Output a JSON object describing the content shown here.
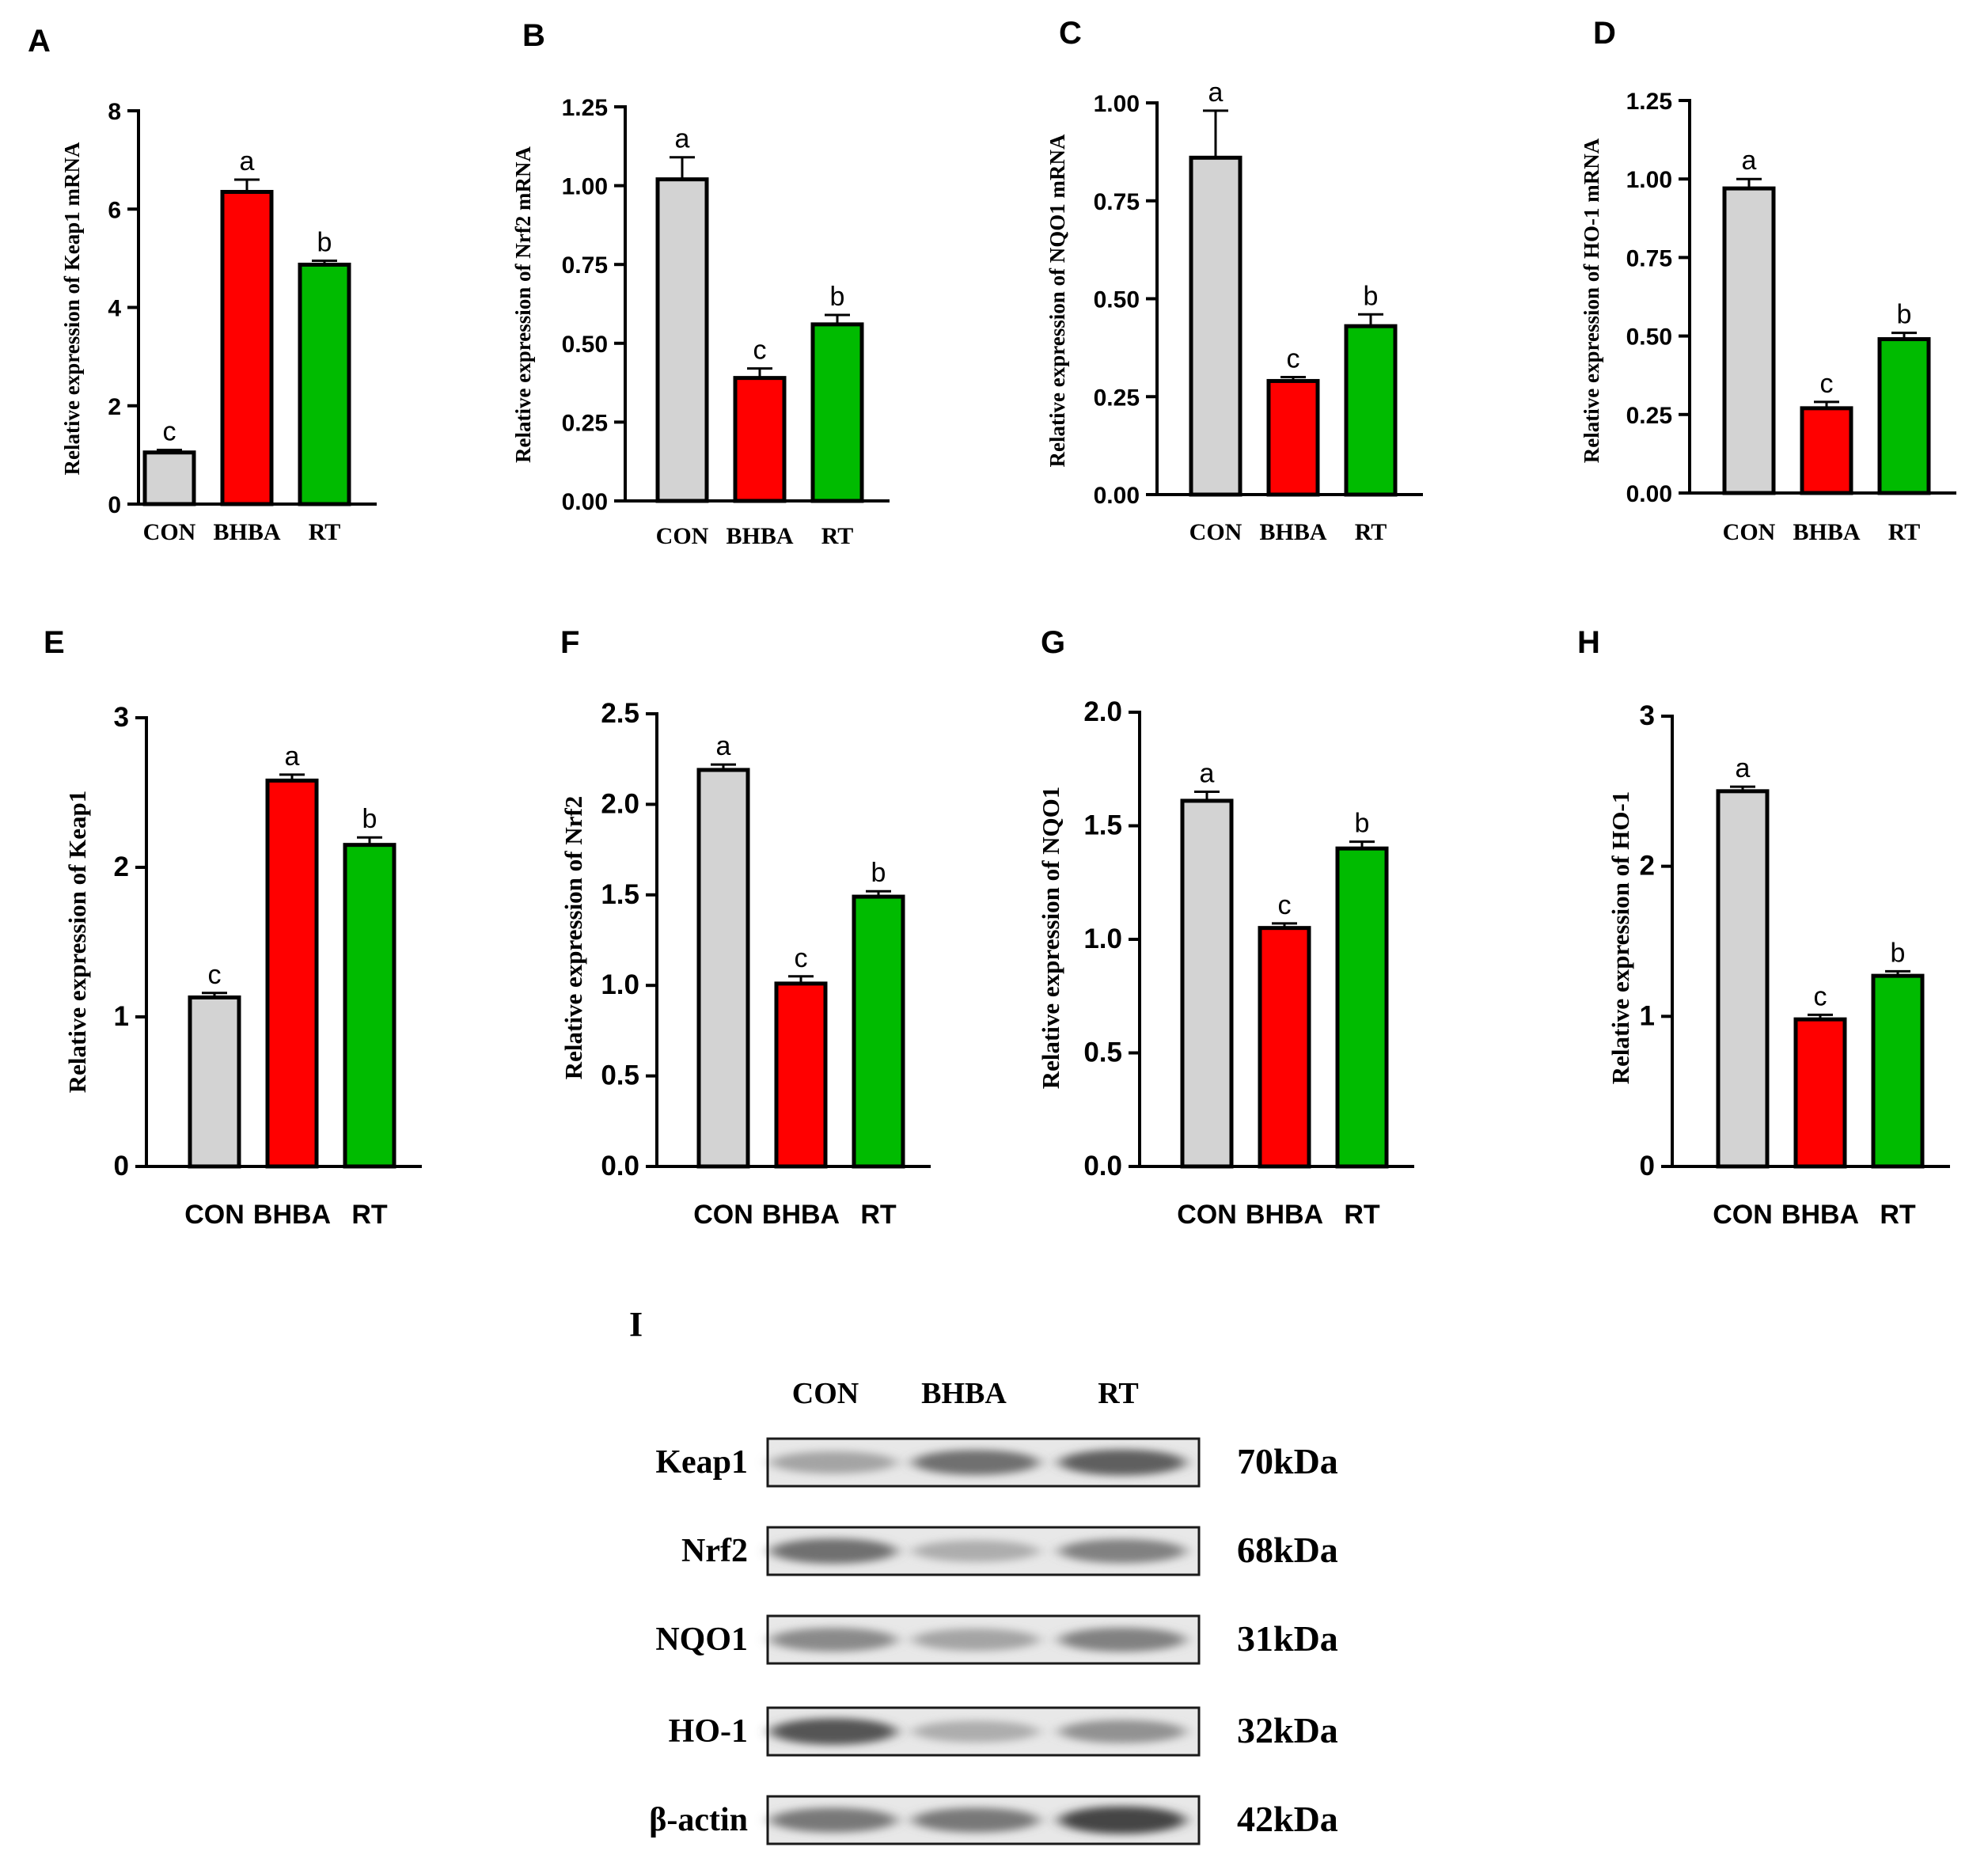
{
  "colors": {
    "CON": "#d3d3d3",
    "BHBA": "#ff0000",
    "RT": "#00bb00",
    "axis": "#000000"
  },
  "chart_data": [
    {
      "panel": "A",
      "type": "bar",
      "ylabel": "Relative expression of Keap1 mRNA",
      "categories": [
        "CON",
        "BHBA",
        "RT"
      ],
      "values": [
        1.05,
        6.35,
        4.87
      ],
      "errors": [
        0.05,
        0.25,
        0.08
      ],
      "significance": [
        "c",
        "a",
        "b"
      ],
      "ylim": [
        0,
        8
      ],
      "yticks": [
        "0",
        "2",
        "4",
        "6",
        "8"
      ]
    },
    {
      "panel": "B",
      "type": "bar",
      "ylabel": "Relative expression of Nrf2 mRNA",
      "categories": [
        "CON",
        "BHBA",
        "RT"
      ],
      "values": [
        1.02,
        0.39,
        0.56
      ],
      "errors": [
        0.07,
        0.03,
        0.03
      ],
      "significance": [
        "a",
        "c",
        "b"
      ],
      "ylim": [
        0,
        1.25
      ],
      "yticks": [
        "0.00",
        "0.25",
        "0.50",
        "0.75",
        "1.00",
        "1.25"
      ]
    },
    {
      "panel": "C",
      "type": "bar",
      "ylabel": "Relative expression of NQO1 mRNA",
      "categories": [
        "CON",
        "BHBA",
        "RT"
      ],
      "values": [
        0.86,
        0.29,
        0.43
      ],
      "errors": [
        0.12,
        0.01,
        0.03
      ],
      "significance": [
        "a",
        "c",
        "b"
      ],
      "ylim": [
        0,
        1.0
      ],
      "yticks": [
        "0.00",
        "0.25",
        "0.50",
        "0.75",
        "1.00"
      ]
    },
    {
      "panel": "D",
      "type": "bar",
      "ylabel": "Relative expression of HO-1 mRNA",
      "categories": [
        "CON",
        "BHBA",
        "RT"
      ],
      "values": [
        0.97,
        0.27,
        0.49
      ],
      "errors": [
        0.03,
        0.02,
        0.02
      ],
      "significance": [
        "a",
        "c",
        "b"
      ],
      "ylim": [
        0,
        1.25
      ],
      "yticks": [
        "0.00",
        "0.25",
        "0.50",
        "0.75",
        "1.00",
        "1.25"
      ]
    },
    {
      "panel": "E",
      "type": "bar",
      "ylabel": "Relative expression of Keap1",
      "categories": [
        "CON",
        "BHBA",
        "RT"
      ],
      "values": [
        1.13,
        2.58,
        2.15
      ],
      "errors": [
        0.03,
        0.04,
        0.05
      ],
      "significance": [
        "c",
        "a",
        "b"
      ],
      "ylim": [
        0,
        3
      ],
      "yticks": [
        "0",
        "1",
        "2",
        "3"
      ]
    },
    {
      "panel": "F",
      "type": "bar",
      "ylabel": "Relative expression of Nrf2",
      "categories": [
        "CON",
        "BHBA",
        "RT"
      ],
      "values": [
        2.19,
        1.01,
        1.49
      ],
      "errors": [
        0.03,
        0.04,
        0.03
      ],
      "significance": [
        "a",
        "c",
        "b"
      ],
      "ylim": [
        0,
        2.5
      ],
      "yticks": [
        "0.0",
        "0.5",
        "1.0",
        "1.5",
        "2.0",
        "2.5"
      ]
    },
    {
      "panel": "G",
      "type": "bar",
      "ylabel": "Relative expression of NQO1",
      "categories": [
        "CON",
        "BHBA",
        "RT"
      ],
      "values": [
        1.61,
        1.05,
        1.4
      ],
      "errors": [
        0.04,
        0.02,
        0.03
      ],
      "significance": [
        "a",
        "c",
        "b"
      ],
      "ylim": [
        0,
        2.0
      ],
      "yticks": [
        "0.0",
        "0.5",
        "1.0",
        "1.5",
        "2.0"
      ]
    },
    {
      "panel": "H",
      "type": "bar",
      "ylabel": "Relative expression of HO-1",
      "categories": [
        "CON",
        "BHBA",
        "RT"
      ],
      "values": [
        2.5,
        0.98,
        1.27
      ],
      "errors": [
        0.03,
        0.03,
        0.03
      ],
      "significance": [
        "a",
        "c",
        "b"
      ],
      "ylim": [
        0,
        3
      ],
      "yticks": [
        "0",
        "1",
        "2",
        "3"
      ]
    }
  ],
  "western_blot": {
    "panel": "I",
    "lanes": [
      "CON",
      "BHBA",
      "RT"
    ],
    "rows": [
      {
        "protein": "Keap1",
        "size": "70kDa",
        "intensity": [
          0.35,
          0.65,
          0.75
        ]
      },
      {
        "protein": "Nrf2",
        "size": "68kDa",
        "intensity": [
          0.65,
          0.3,
          0.55
        ]
      },
      {
        "protein": "NQO1",
        "size": "31kDa",
        "intensity": [
          0.5,
          0.35,
          0.55
        ]
      },
      {
        "protein": "HO-1",
        "size": "32kDa",
        "intensity": [
          0.8,
          0.3,
          0.45
        ]
      },
      {
        "protein": "β-actin",
        "size": "42kDa",
        "intensity": [
          0.6,
          0.6,
          0.9
        ]
      }
    ]
  }
}
